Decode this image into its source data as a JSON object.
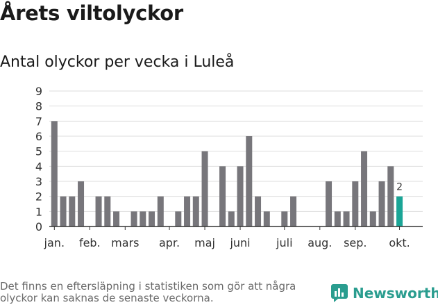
{
  "title": "Årets viltolyckor",
  "subtitle": "Antal olyckor per vecka i Luleå",
  "footnote": "Det finns en eftersläpning i statistiken som gör att några olyckor kan saknas de senaste veckorna.",
  "brand": {
    "name": "Newsworthy",
    "icon": "newsworthy-logo-icon",
    "color": "#2a9d8f"
  },
  "colors": {
    "bar": "#77767b",
    "highlight": "#1aa596",
    "grid": "#dddddd",
    "axis": "#333333"
  },
  "chart_data": {
    "type": "bar",
    "title": "Antal olyckor per vecka i Luleå",
    "xlabel": "",
    "ylabel": "",
    "ylim": [
      0,
      9
    ],
    "yticks": [
      0,
      1,
      2,
      3,
      4,
      5,
      6,
      7,
      8,
      9
    ],
    "grid": true,
    "weeks": [
      1,
      2,
      3,
      4,
      5,
      6,
      7,
      8,
      9,
      10,
      11,
      12,
      13,
      14,
      15,
      16,
      17,
      18,
      19,
      20,
      21,
      22,
      23,
      24,
      25,
      26,
      27,
      28,
      29,
      30,
      31,
      32,
      33,
      34,
      35,
      36,
      37,
      38,
      39,
      40
    ],
    "values": [
      7,
      2,
      2,
      3,
      0,
      2,
      2,
      1,
      0,
      1,
      1,
      1,
      2,
      0,
      1,
      2,
      2,
      5,
      0,
      4,
      1,
      4,
      6,
      2,
      1,
      0,
      1,
      2,
      0,
      0,
      0,
      3,
      1,
      1,
      3,
      5,
      1,
      3,
      4,
      2
    ],
    "highlight_index": 39,
    "data_labels": [
      {
        "index": 39,
        "text": "2"
      }
    ],
    "month_ticks": [
      {
        "label": "jan.",
        "position": 0.5
      },
      {
        "label": "feb.",
        "position": 4.5
      },
      {
        "label": "mars",
        "position": 8.5
      },
      {
        "label": "apr.",
        "position": 13.5
      },
      {
        "label": "maj",
        "position": 17.5
      },
      {
        "label": "juni",
        "position": 21.5
      },
      {
        "label": "juli",
        "position": 26.5
      },
      {
        "label": "aug.",
        "position": 30.5
      },
      {
        "label": "sep.",
        "position": 34.5
      },
      {
        "label": "okt.",
        "position": 39.5
      }
    ]
  }
}
